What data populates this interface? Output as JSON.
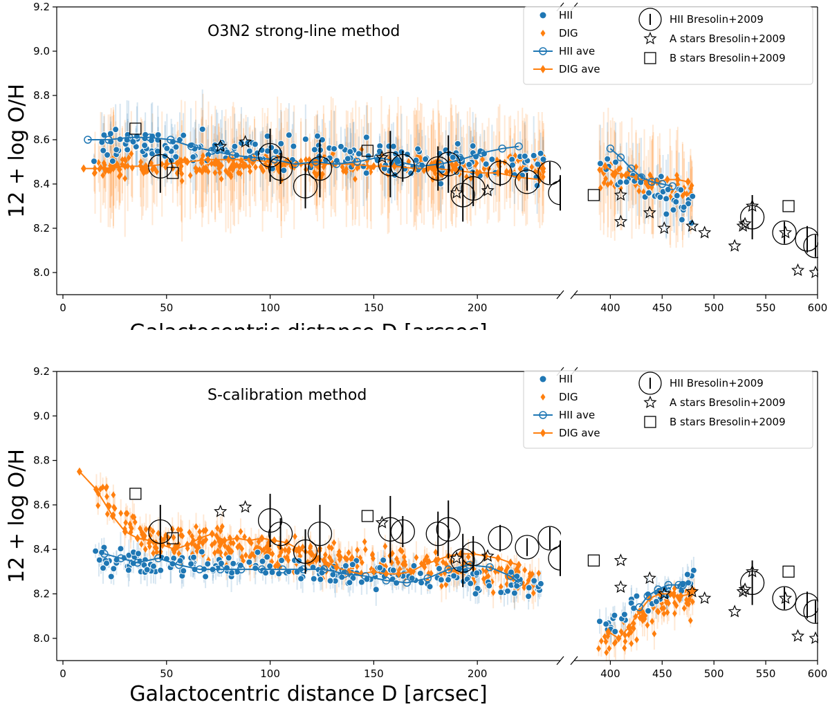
{
  "colors": {
    "hii": "#1f77b4",
    "dig": "#ff7f0e",
    "bresolin": "#000000"
  },
  "chart_data": [
    {
      "type": "scatter",
      "title": "O3N2 strong-line method",
      "xlabel": "Galactocentric distance D [arcsec]",
      "ylabel": "12 + log O/H",
      "broken_x_axis": {
        "left_range": [
          -3,
          240
        ],
        "right_range": [
          365,
          600
        ]
      },
      "ylim": [
        7.9,
        9.2
      ],
      "yticks": [
        "8.0",
        "8.2",
        "8.4",
        "8.6",
        "8.8",
        "9.0",
        "9.2"
      ],
      "xticks_left": [
        "0",
        "50",
        "100",
        "150",
        "200"
      ],
      "xticks_right": [
        "400",
        "450",
        "500",
        "550",
        "600"
      ],
      "legend": [
        "HII",
        "DIG",
        "HII ave",
        "DIG ave",
        "HII Bresolin+2009",
        "A stars Bresolin+2009",
        "B stars Bresolin+2009"
      ],
      "legend_position": "top-right",
      "series": [
        {
          "name": "HII ave",
          "x": [
            12,
            22,
            32,
            42,
            52,
            62,
            72,
            82,
            92,
            102,
            112,
            122,
            132,
            142,
            152,
            162,
            172,
            182,
            192,
            202,
            212,
            220,
            400,
            410,
            420,
            430,
            440,
            450,
            460
          ],
          "y": [
            8.6,
            8.6,
            8.61,
            8.61,
            8.6,
            8.57,
            8.55,
            8.53,
            8.52,
            8.51,
            8.49,
            8.5,
            8.49,
            8.5,
            8.52,
            8.5,
            8.48,
            8.49,
            8.51,
            8.54,
            8.56,
            8.57,
            8.56,
            8.52,
            8.47,
            8.43,
            8.41,
            8.4,
            8.39
          ]
        },
        {
          "name": "DIG ave",
          "x": [
            10,
            20,
            30,
            40,
            50,
            60,
            70,
            80,
            90,
            100,
            110,
            120,
            130,
            140,
            150,
            160,
            170,
            180,
            190,
            200,
            210,
            220,
            230,
            395,
            405,
            415,
            425,
            435,
            445,
            455,
            465,
            475
          ],
          "y": [
            8.47,
            8.47,
            8.48,
            8.48,
            8.49,
            8.5,
            8.51,
            8.51,
            8.51,
            8.5,
            8.49,
            8.49,
            8.49,
            8.49,
            8.48,
            8.48,
            8.47,
            8.47,
            8.46,
            8.45,
            8.45,
            8.43,
            8.42,
            8.48,
            8.45,
            8.44,
            8.43,
            8.41,
            8.41,
            8.42,
            8.42,
            8.41
          ]
        },
        {
          "name": "HII Bresolin+2009",
          "x": [
            47,
            100,
            105,
            117,
            124,
            158,
            164,
            181,
            186,
            193,
            198,
            211,
            224,
            235,
            240,
            537,
            568,
            590,
            598
          ],
          "y": [
            8.48,
            8.53,
            8.47,
            8.39,
            8.47,
            8.49,
            8.48,
            8.47,
            8.49,
            8.35,
            8.38,
            8.45,
            8.41,
            8.45,
            8.36,
            8.25,
            8.18,
            8.15,
            8.12
          ],
          "err": [
            0.12,
            0.12,
            0.07,
            0.1,
            0.13,
            0.15,
            0.07,
            0.1,
            0.13,
            0.12,
            0.08,
            0.06,
            0.04,
            0.05,
            0.08,
            0.1,
            0.05,
            0.06,
            0.05
          ]
        },
        {
          "name": "A stars Bresolin+2009",
          "x": [
            76,
            88,
            154,
            190,
            205,
            410,
            410,
            438,
            452,
            479,
            491,
            520,
            528,
            530,
            537,
            569,
            581,
            598
          ],
          "y": [
            8.57,
            8.59,
            8.52,
            8.36,
            8.37,
            8.35,
            8.23,
            8.27,
            8.2,
            8.21,
            8.18,
            8.12,
            8.21,
            8.22,
            8.3,
            8.18,
            8.01,
            8.0
          ]
        },
        {
          "name": "B stars Bresolin+2009",
          "x": [
            35,
            53,
            147,
            384,
            572
          ],
          "y": [
            8.65,
            8.45,
            8.55,
            8.35,
            8.3
          ]
        }
      ]
    },
    {
      "type": "scatter",
      "title": "S-calibration method",
      "xlabel": "Galactocentric distance D [arcsec]",
      "ylabel": "12 + log O/H",
      "broken_x_axis": {
        "left_range": [
          -3,
          240
        ],
        "right_range": [
          365,
          600
        ]
      },
      "ylim": [
        7.9,
        9.2
      ],
      "yticks": [
        "8.0",
        "8.2",
        "8.4",
        "8.6",
        "8.8",
        "9.0",
        "9.2"
      ],
      "xticks_left": [
        "0",
        "50",
        "100",
        "150",
        "200"
      ],
      "xticks_right": [
        "400",
        "450",
        "500",
        "550",
        "600"
      ],
      "legend": [
        "HII",
        "DIG",
        "HII ave",
        "DIG ave",
        "HII Bresolin+2009",
        "A stars Bresolin+2009",
        "B stars Bresolin+2009"
      ],
      "legend_position": "top-right",
      "series": [
        {
          "name": "HII ave",
          "x": [
            20,
            28,
            36,
            46,
            56,
            66,
            76,
            86,
            96,
            106,
            116,
            126,
            136,
            146,
            156,
            166,
            176,
            186,
            196,
            206,
            216,
            220,
            428,
            436,
            446,
            456,
            466,
            470
          ],
          "y": [
            8.38,
            8.36,
            8.34,
            8.36,
            8.33,
            8.31,
            8.31,
            8.31,
            8.31,
            8.31,
            8.31,
            8.31,
            8.29,
            8.28,
            8.26,
            8.25,
            8.27,
            8.31,
            8.33,
            8.32,
            8.28,
            8.25,
            8.14,
            8.19,
            8.22,
            8.24,
            8.24,
            8.24
          ]
        },
        {
          "name": "DIG ave",
          "x": [
            8,
            16,
            24,
            30,
            36,
            42,
            48,
            54,
            60,
            66,
            72,
            78,
            84,
            90,
            96,
            102,
            108,
            114,
            120,
            126,
            132,
            138,
            144,
            150,
            156,
            162,
            168,
            174,
            180,
            186,
            192,
            198,
            204,
            210,
            216,
            220,
            398,
            408,
            418,
            428,
            438,
            448,
            458,
            468,
            478
          ],
          "y": [
            8.75,
            8.67,
            8.55,
            8.48,
            8.45,
            8.44,
            8.42,
            8.4,
            8.42,
            8.45,
            8.47,
            8.44,
            8.45,
            8.44,
            8.45,
            8.44,
            8.43,
            8.4,
            8.38,
            8.35,
            8.32,
            8.3,
            8.29,
            8.3,
            8.29,
            8.29,
            8.3,
            8.33,
            8.35,
            8.37,
            8.38,
            8.38,
            8.37,
            8.36,
            8.34,
            8.33,
            8.03,
            8.0,
            8.05,
            8.12,
            8.18,
            8.2,
            8.2,
            8.19,
            8.2
          ]
        },
        {
          "name": "HII Bresolin+2009",
          "x": [
            47,
            100,
            105,
            117,
            124,
            158,
            164,
            181,
            186,
            193,
            198,
            211,
            224,
            235,
            240,
            537,
            568,
            590,
            598
          ],
          "y": [
            8.48,
            8.53,
            8.47,
            8.39,
            8.47,
            8.49,
            8.48,
            8.47,
            8.49,
            8.35,
            8.38,
            8.45,
            8.41,
            8.45,
            8.36,
            8.25,
            8.18,
            8.15,
            8.12
          ],
          "err": [
            0.12,
            0.12,
            0.07,
            0.1,
            0.13,
            0.15,
            0.07,
            0.1,
            0.13,
            0.12,
            0.08,
            0.06,
            0.04,
            0.05,
            0.08,
            0.1,
            0.05,
            0.06,
            0.05
          ]
        },
        {
          "name": "A stars Bresolin+2009",
          "x": [
            76,
            88,
            154,
            190,
            205,
            410,
            410,
            438,
            452,
            479,
            491,
            520,
            528,
            530,
            537,
            569,
            581,
            598
          ],
          "y": [
            8.57,
            8.59,
            8.52,
            8.36,
            8.37,
            8.35,
            8.23,
            8.27,
            8.2,
            8.21,
            8.18,
            8.12,
            8.21,
            8.22,
            8.3,
            8.18,
            8.01,
            8.0
          ]
        },
        {
          "name": "B stars Bresolin+2009",
          "x": [
            35,
            53,
            147,
            384,
            572
          ],
          "y": [
            8.65,
            8.45,
            8.55,
            8.35,
            8.3
          ]
        }
      ]
    }
  ]
}
